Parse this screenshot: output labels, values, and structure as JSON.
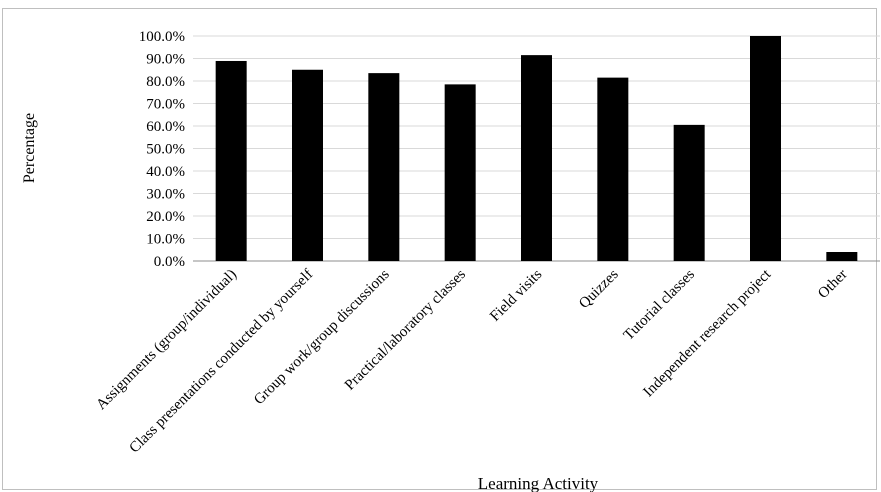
{
  "chart_data": {
    "type": "bar",
    "title": "",
    "xlabel": "Learning Activity",
    "ylabel": "Percentage",
    "categories": [
      "Assignments (group/individual)",
      "Class presentations conducted by yourself",
      "Group work/group discussions",
      "Practical/laboratory classes",
      "Field visits",
      "Quizzes",
      "Tutorial classes",
      "Independent research project",
      "Other"
    ],
    "values": [
      88.9,
      85.0,
      83.5,
      78.5,
      91.5,
      81.5,
      60.5,
      100.0,
      4.0
    ],
    "ylim": [
      0,
      100
    ],
    "yticks": [
      "0.0%",
      "10.0%",
      "20.0%",
      "30.0%",
      "40.0%",
      "50.0%",
      "60.0%",
      "70.0%",
      "80.0%",
      "90.0%",
      "100.0%"
    ],
    "grid": true,
    "legend": "none",
    "bar_color": "#000000",
    "grid_color": "#d9d9d9"
  }
}
